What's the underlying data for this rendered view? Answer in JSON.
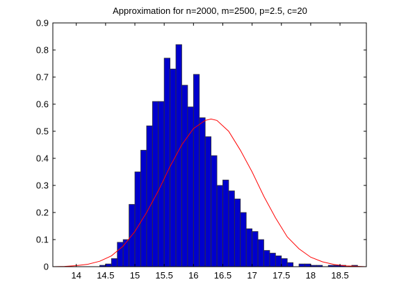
{
  "chart_data": {
    "type": "bar",
    "title": "Approximation for n=2000, m=2500, p=2.5, c=20",
    "xlim": [
      13.6,
      18.95
    ],
    "ylim": [
      0,
      0.9
    ],
    "grid": false,
    "x_ticks": [
      14,
      14.5,
      15,
      15.5,
      16,
      16.5,
      17,
      17.5,
      18,
      18.5
    ],
    "y_ticks": [
      0,
      0.1,
      0.2,
      0.3,
      0.4,
      0.5,
      0.6,
      0.7,
      0.8,
      0.9
    ],
    "x_tick_labels": [
      "14",
      "14.5",
      "15",
      "15.5",
      "16",
      "16.5",
      "17",
      "17.5",
      "18",
      "18.5"
    ],
    "y_tick_labels": [
      "0",
      "0.1",
      "0.2",
      "0.3",
      "0.4",
      "0.5",
      "0.6",
      "0.7",
      "0.8",
      "0.9"
    ],
    "series": [
      {
        "type": "histogram",
        "bar_color": "#0000cc",
        "edge_color": "#333333",
        "bin_width": 0.1,
        "bin_centers": [
          14.45,
          14.55,
          14.65,
          14.75,
          14.85,
          14.95,
          15.05,
          15.15,
          15.25,
          15.35,
          15.45,
          15.55,
          15.65,
          15.75,
          15.85,
          15.95,
          16.05,
          16.15,
          16.25,
          16.35,
          16.45,
          16.55,
          16.65,
          16.75,
          16.85,
          16.95,
          17.05,
          17.15,
          17.25,
          17.35,
          17.45,
          17.55,
          17.65,
          17.85,
          17.95,
          18.05,
          18.15,
          18.35,
          18.45,
          18.55,
          18.75
        ],
        "values": [
          0.005,
          0.01,
          0.03,
          0.09,
          0.1,
          0.23,
          0.35,
          0.43,
          0.52,
          0.61,
          0.61,
          0.77,
          0.73,
          0.82,
          0.67,
          0.59,
          0.71,
          0.55,
          0.48,
          0.41,
          0.3,
          0.32,
          0.28,
          0.25,
          0.2,
          0.14,
          0.13,
          0.1,
          0.06,
          0.05,
          0.04,
          0.03,
          0.015,
          0.01,
          0.01,
          0.005,
          0.005,
          0.005,
          0.005,
          0.005,
          0.005
        ]
      },
      {
        "type": "line",
        "color": "#ff0000",
        "x": [
          13.6,
          13.8,
          14.0,
          14.2,
          14.4,
          14.6,
          14.8,
          15.0,
          15.2,
          15.4,
          15.6,
          15.8,
          16.0,
          16.2,
          16.3,
          16.4,
          16.6,
          16.8,
          17.0,
          17.2,
          17.4,
          17.6,
          17.8,
          18.0,
          18.2,
          18.4,
          18.6,
          18.95
        ],
        "y": [
          0.0,
          0.001,
          0.004,
          0.009,
          0.02,
          0.04,
          0.076,
          0.13,
          0.2,
          0.28,
          0.37,
          0.45,
          0.51,
          0.54,
          0.545,
          0.54,
          0.5,
          0.43,
          0.35,
          0.26,
          0.18,
          0.11,
          0.066,
          0.035,
          0.018,
          0.008,
          0.003,
          0.0
        ]
      }
    ]
  }
}
